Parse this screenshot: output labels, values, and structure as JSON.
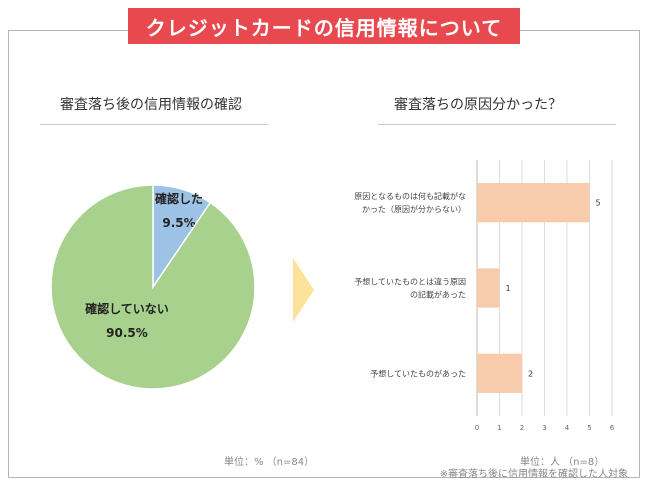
{
  "header": {
    "title": "クレジットカードの信用情報について"
  },
  "left": {
    "subtitle": "審査落ち後の信用情報の確認",
    "unit_note": "単位：%  （n=84）"
  },
  "right": {
    "subtitle": "審査落ちの原因分かった？",
    "unit_note": "単位：人  （n=8）",
    "footnote": "※審査落ち後に信用情報を確認した人対象"
  },
  "chart_data": [
    {
      "type": "pie",
      "title": "審査落ち後の信用情報の確認",
      "slices": [
        {
          "label": "確認した",
          "value": 9.5,
          "value_label": "9.5%",
          "color": "#9cc3e5"
        },
        {
          "label": "確認していない",
          "value": 90.5,
          "value_label": "90.5%",
          "color": "#a9d18e"
        }
      ]
    },
    {
      "type": "bar",
      "orientation": "horizontal",
      "title": "審査落ちの原因分かった？",
      "categories": [
        [
          "原因となるものは何も記載がな",
          "かった（原因が分からない）"
        ],
        [
          "予想していたものとは違う原因",
          "の記載があった"
        ],
        [
          "予想していたものがあった"
        ]
      ],
      "values": [
        5,
        1,
        2
      ],
      "xlim": [
        0,
        6
      ],
      "ticks": [
        0,
        1,
        2,
        3,
        4,
        5,
        6
      ],
      "grid": true,
      "color": "#f8cbad"
    }
  ]
}
